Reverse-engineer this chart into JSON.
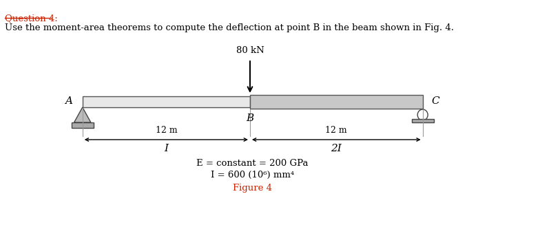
{
  "title_line1": "Question 4:",
  "title_line2": "Use the moment-area theorems to compute the deflection at point B in the beam shown in Fig. 4.",
  "load_label": "80 kN",
  "point_A": "A",
  "point_B": "B",
  "point_C": "C",
  "dim_left": "12 m",
  "dim_right": "12 m",
  "moment_left": "I",
  "moment_right": "2I",
  "eq1": "E = constant = 200 GPa",
  "eq2": "I = 600 (10⁶) mm⁴",
  "fig_label": "Figure 4",
  "bg_color": "#ffffff",
  "beam_outline": "#555555",
  "text_color": "#000000",
  "title_color": "#cc2200",
  "fig_color": "#cc2200",
  "beam_left_face": "#e8e8e8",
  "beam_right_face": "#c8c8c8",
  "support_face": "#bbbbbb",
  "support_edge": "#444444",
  "base_face": "#aaaaaa"
}
